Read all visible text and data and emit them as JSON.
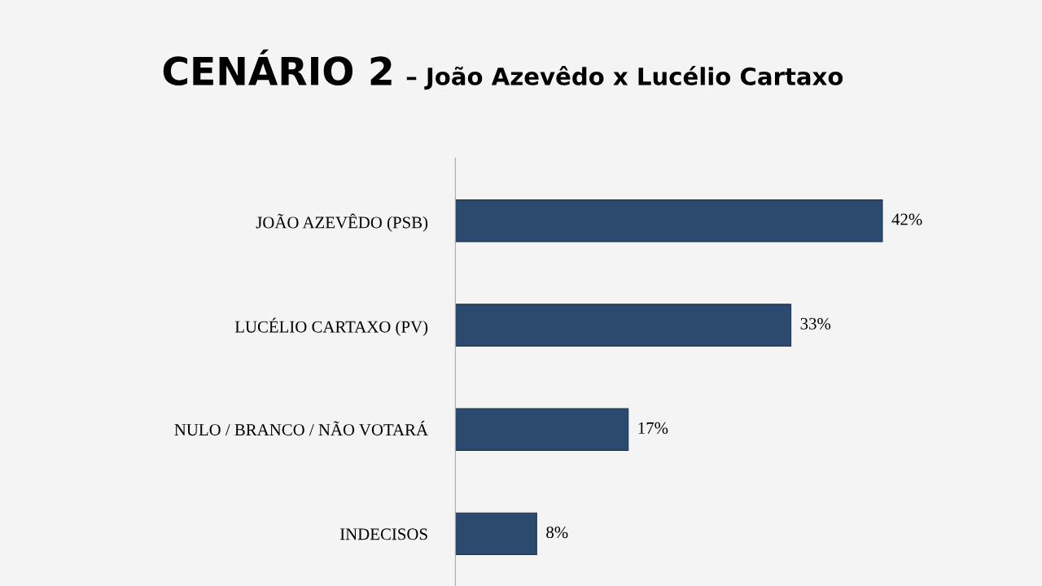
{
  "chart_data": {
    "type": "bar",
    "orientation": "horizontal",
    "title": "CENÁRIO 2",
    "subtitle": "– João Azevêdo x Lucélio Cartaxo",
    "categories": [
      "JOÃO AZEVÊDO (PSB)",
      "LUCÉLIO CARTAXO (PV)",
      "NULO / BRANCO / NÃO VOTARÁ",
      "INDECISOS"
    ],
    "values": [
      42,
      33,
      17,
      8
    ],
    "value_labels": [
      "42%",
      "33%",
      "17%",
      "8%"
    ],
    "color": "#2c4a6e",
    "grid": false,
    "legend": false
  }
}
